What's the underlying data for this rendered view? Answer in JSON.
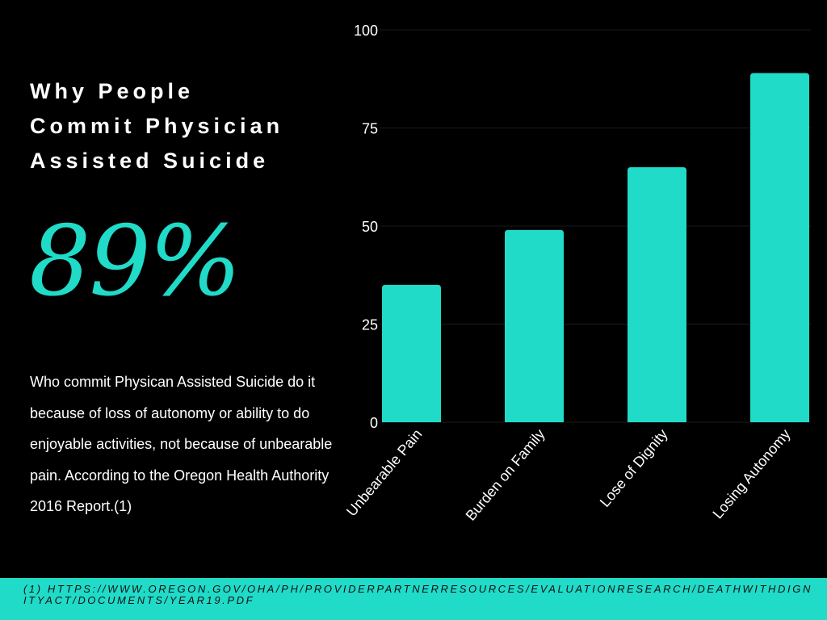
{
  "title_lines": [
    "Why People",
    "Commit Physician",
    "Assisted Suicide"
  ],
  "highlight": "89%",
  "description": "Who commit Physican Assisted Suicide do it because of loss of autonomy or ability to do enjoyable activities, not because of unbearable pain.  According to the Oregon Health Authority 2016 Report.(1)",
  "footnote": "(1) HTTPS://WWW.OREGON.GOV/OHA/PH/PROVIDERPARTNERRESOURCES/EVALUATIONRESEARCH/DEATHWITHDIGNITYACT/DOCUMENTS/YEAR19.PDF",
  "colors": {
    "accent": "#20dbc8",
    "background": "#000000"
  },
  "chart_data": {
    "type": "bar",
    "categories": [
      "Unbearable Pain",
      "Burden on Family",
      "Lose of Dignity",
      "Losing Autonomy"
    ],
    "values": [
      35,
      49,
      65,
      89
    ],
    "yticks": [
      "0",
      "25",
      "50",
      "75",
      "100"
    ],
    "ylim": [
      0,
      100
    ],
    "title": "",
    "xlabel": "",
    "ylabel": "",
    "grid": true
  }
}
